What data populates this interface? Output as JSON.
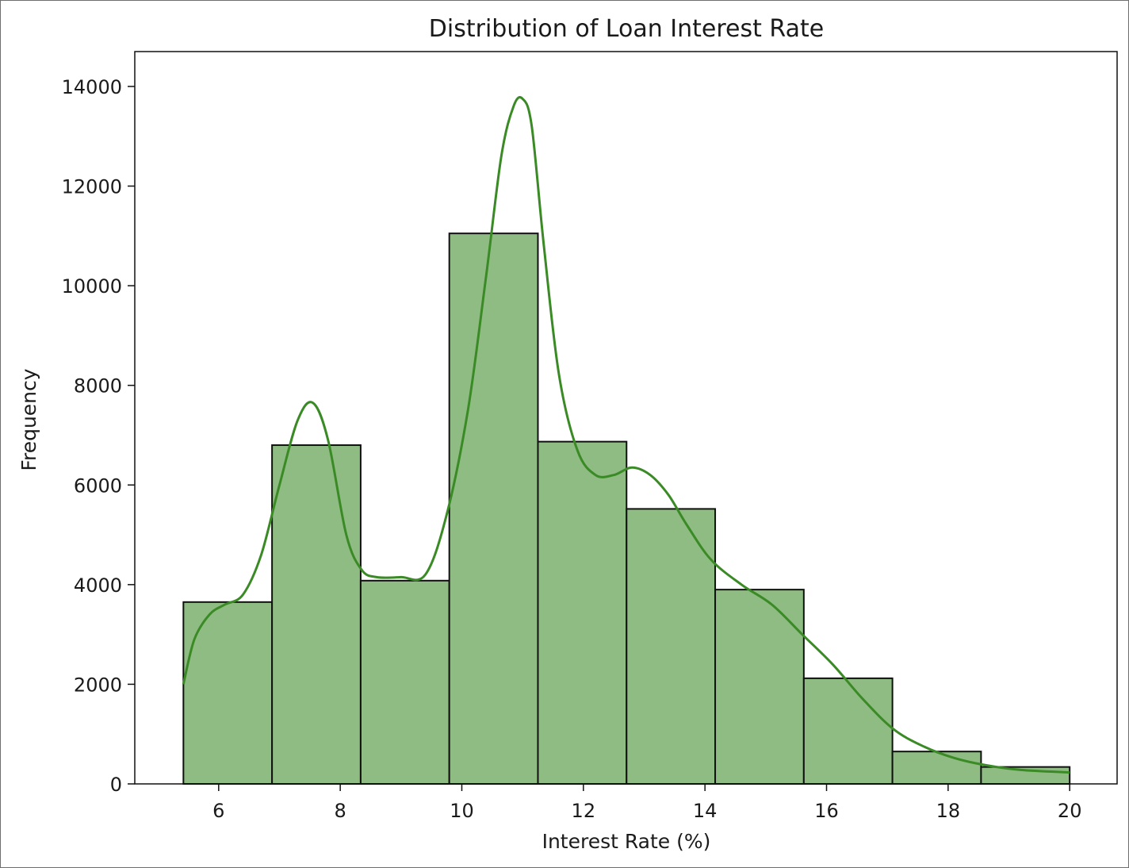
{
  "chart_data": {
    "type": "bar",
    "title": "Distribution of Loan Interest Rate",
    "xlabel": "Interest Rate (%)",
    "ylabel": "Frequency",
    "xlim": [
      4.62,
      20.78
    ],
    "ylim": [
      0,
      14700
    ],
    "xticks": [
      6,
      8,
      10,
      12,
      14,
      16,
      18,
      20
    ],
    "yticks": [
      0,
      2000,
      4000,
      6000,
      8000,
      10000,
      12000,
      14000
    ],
    "bin_edges": [
      5.42,
      6.878,
      8.336,
      9.794,
      11.252,
      12.71,
      14.168,
      15.626,
      17.084,
      18.542,
      20.0
    ],
    "values": [
      3650,
      6800,
      4080,
      11050,
      6870,
      5520,
      3900,
      2120,
      650,
      340
    ],
    "kde": {
      "x": [
        5.42,
        5.6,
        5.85,
        6.1,
        6.4,
        6.7,
        7.0,
        7.3,
        7.55,
        7.8,
        8.1,
        8.35,
        8.6,
        9.0,
        9.4,
        9.75,
        10.1,
        10.4,
        10.65,
        10.85,
        11.0,
        11.15,
        11.35,
        11.6,
        11.9,
        12.2,
        12.5,
        12.8,
        13.1,
        13.4,
        13.7,
        14.1,
        14.6,
        15.1,
        15.6,
        16.1,
        16.6,
        17.1,
        17.6,
        18.1,
        18.6,
        19.2,
        20.0
      ],
      "y": [
        2000,
        2900,
        3400,
        3600,
        3800,
        4600,
        6000,
        7300,
        7650,
        6900,
        5000,
        4300,
        4150,
        4150,
        4200,
        5400,
        7500,
        10200,
        12600,
        13600,
        13750,
        13200,
        10800,
        8200,
        6700,
        6200,
        6200,
        6350,
        6200,
        5800,
        5200,
        4500,
        4000,
        3600,
        3000,
        2400,
        1700,
        1100,
        750,
        520,
        380,
        280,
        230
      ]
    },
    "colors": {
      "bar_fill": "#8fbc83",
      "bar_edge": "#111111",
      "kde_line": "#3a8a25"
    },
    "grid": false,
    "legend": "none"
  }
}
